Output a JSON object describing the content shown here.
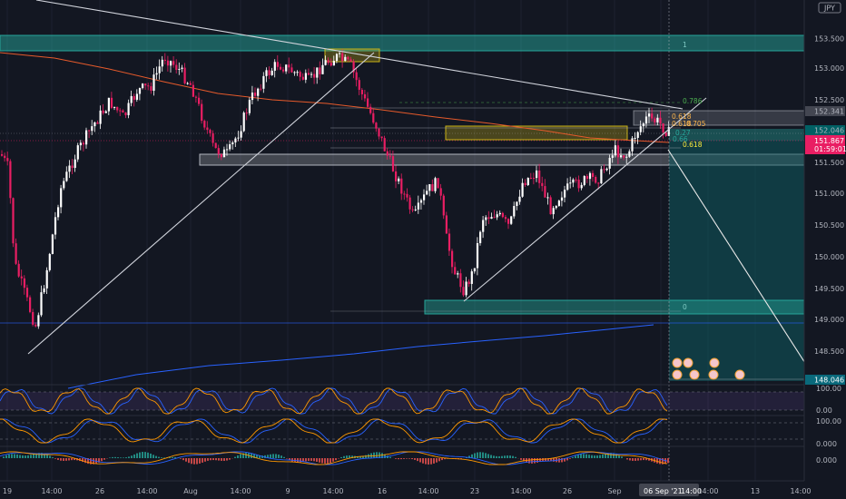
{
  "symbol_badge": "JPY",
  "chart_data": {
    "type": "candlestick",
    "y_axis_ticks": [
      "153.500",
      "153.000",
      "152.500",
      "152.000",
      "151.500",
      "151.000",
      "150.500",
      "150.000",
      "149.500",
      "149.000",
      "148.500"
    ],
    "y_ylim": [
      148.1,
      154.0
    ],
    "x_axis_ticks": [
      "19",
      "14:00",
      "26",
      "14:00",
      "Aug",
      "14:00",
      "9",
      "14:00",
      "16",
      "14:00",
      "23",
      "14:00",
      "26",
      "Sep",
      "14:00",
      "13",
      "14:00"
    ],
    "x_cursor_label": "06 Sep '21",
    "x_cursor_time": "14:00",
    "price_labels": {
      "top_level": "152.341",
      "mid_level": "152.046",
      "last_price": "151.867",
      "countdown": "01:59:01",
      "target": "148.046"
    },
    "fib_labels": [
      "0.786",
      "0.618",
      "0.705",
      "0.27",
      "0.618",
      "0.66",
      "0.618",
      "1",
      "0"
    ],
    "osc1_ticks": [
      "100.00",
      "0.00"
    ],
    "osc2_ticks": [
      "100.00",
      "0.000"
    ],
    "osc3_ticks": [
      "0.000"
    ],
    "colors": {
      "up": "#ffffff",
      "down": "#e91e63",
      "zone_teal": "#26a69a",
      "zone_yellow": "#c9b317",
      "ma_orange": "#e65a2b",
      "ma_blue": "#2962ff"
    }
  }
}
